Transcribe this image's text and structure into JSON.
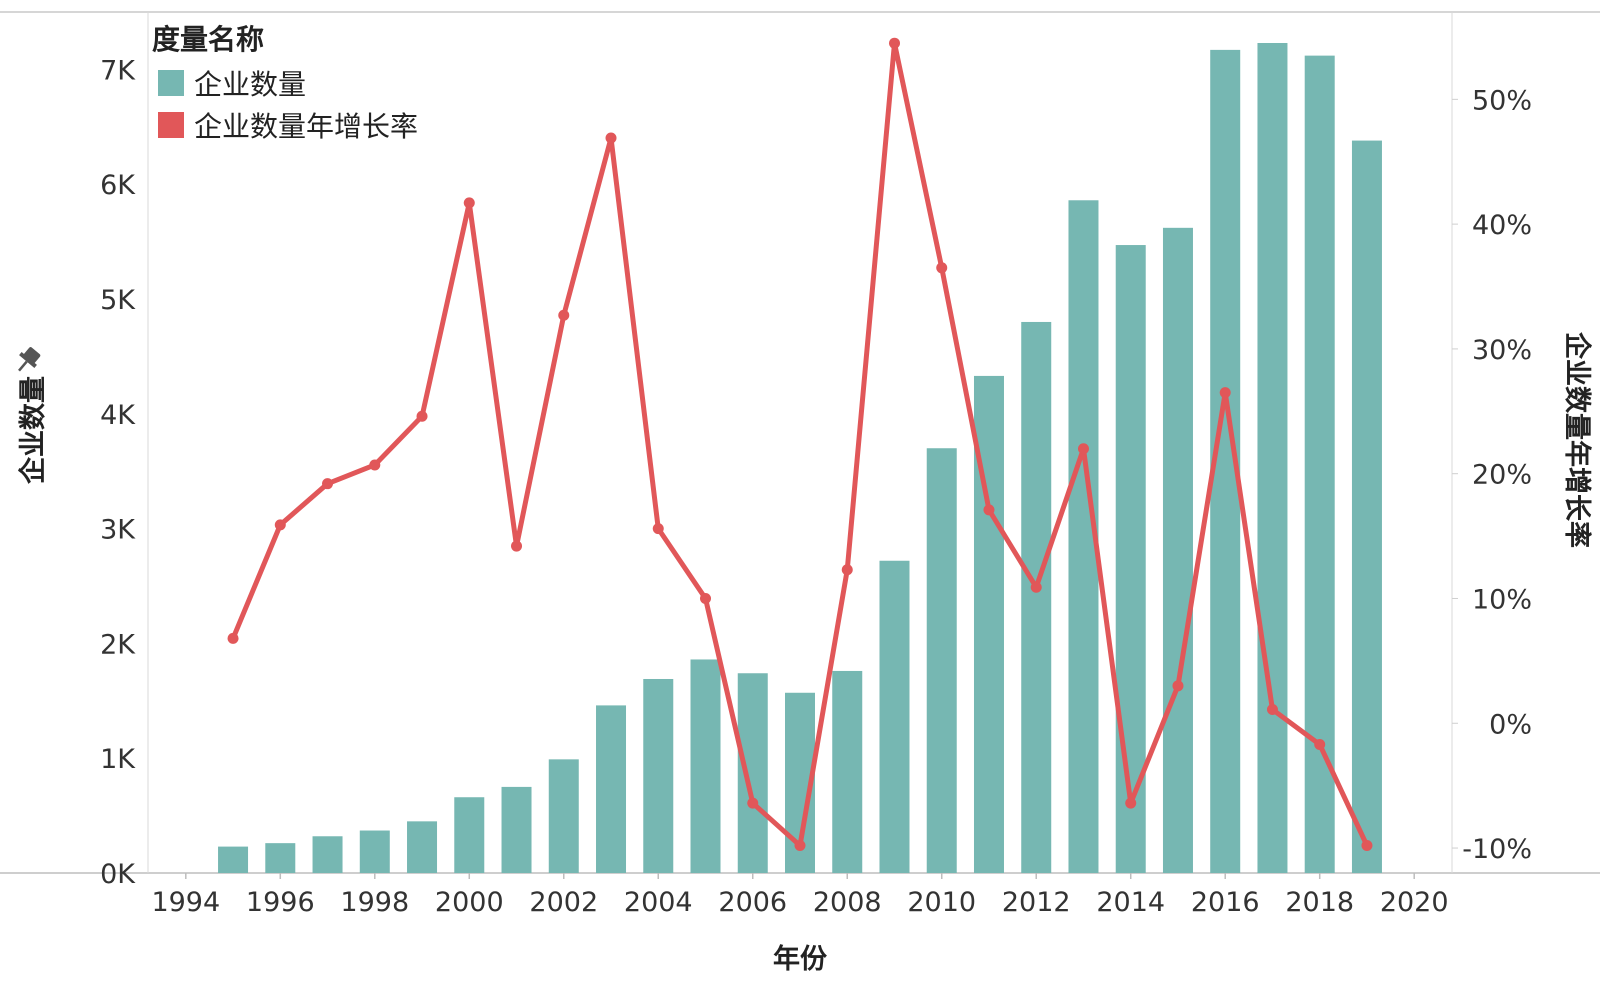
{
  "legend": {
    "title": "度量名称",
    "items": [
      {
        "label": "企业数量",
        "color": "#76b7b2"
      },
      {
        "label": "企业数量年增长率",
        "color": "#e15759"
      }
    ]
  },
  "chart_data": {
    "type": "bar",
    "xlabel": "年份",
    "ylabel_left": "企业数量",
    "ylabel_right": "企业数量年增长率",
    "x_ticks": [
      "1994",
      "1996",
      "1998",
      "2000",
      "2002",
      "2004",
      "2006",
      "2008",
      "2010",
      "2012",
      "2014",
      "2016",
      "2018",
      "2020"
    ],
    "x_range": [
      1993.2,
      2020.8
    ],
    "y_left_ticks": [
      "0K",
      "1K",
      "2K",
      "3K",
      "4K",
      "5K",
      "6K",
      "7K"
    ],
    "y_left_range": [
      0,
      7500
    ],
    "y_right_ticks": [
      "-10%",
      "0%",
      "10%",
      "20%",
      "30%",
      "40%",
      "50%"
    ],
    "y_right_range": [
      -12,
      57
    ],
    "grid": false,
    "legend_position": "top-left",
    "pin_icon": "pin-icon",
    "series": [
      {
        "name": "企业数量",
        "type": "bar",
        "axis": "left",
        "color": "#76b7b2",
        "x": [
          1995,
          1996,
          1997,
          1998,
          1999,
          2000,
          2001,
          2002,
          2003,
          2004,
          2005,
          2006,
          2007,
          2008,
          2009,
          2010,
          2011,
          2012,
          2013,
          2014,
          2015,
          2016,
          2017,
          2018,
          2019
        ],
        "values": [
          230,
          260,
          320,
          370,
          450,
          660,
          750,
          990,
          1460,
          1690,
          1860,
          1740,
          1570,
          1760,
          2720,
          3700,
          4330,
          4800,
          5860,
          5470,
          5620,
          7170,
          7230,
          7120,
          6380
        ]
      },
      {
        "name": "企业数量年增长率",
        "type": "line",
        "axis": "right",
        "color": "#e15759",
        "x": [
          1995,
          1996,
          1997,
          1998,
          1999,
          2000,
          2001,
          2002,
          2003,
          2004,
          2005,
          2006,
          2007,
          2008,
          2009,
          2010,
          2011,
          2012,
          2013,
          2014,
          2015,
          2016,
          2017,
          2018,
          2019
        ],
        "values": [
          6.8,
          15.9,
          19.2,
          20.7,
          24.6,
          41.7,
          14.2,
          32.7,
          46.9,
          15.6,
          10.0,
          -6.4,
          -9.8,
          12.3,
          54.5,
          36.5,
          17.1,
          10.9,
          22.0,
          -6.4,
          3.0,
          26.5,
          1.1,
          -1.7,
          -9.8
        ]
      }
    ]
  }
}
